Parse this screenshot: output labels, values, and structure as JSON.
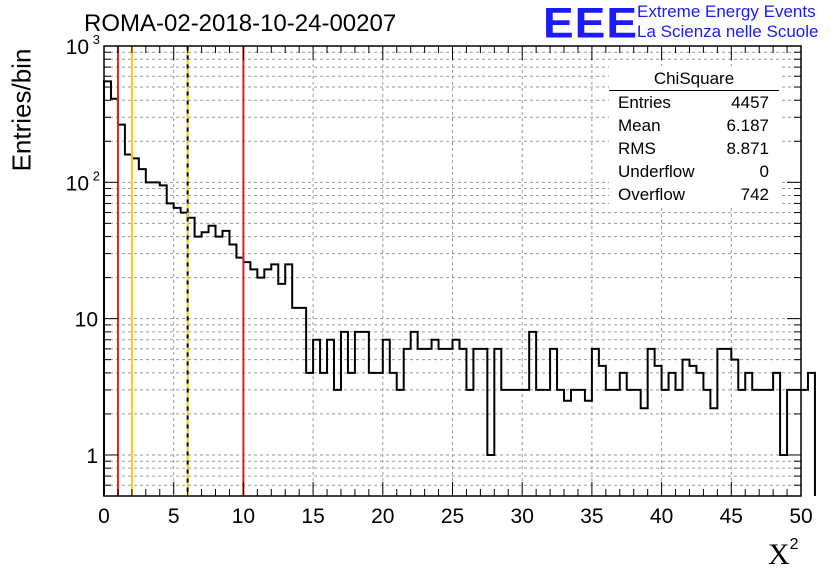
{
  "header": {
    "run_title": "ROMA-02-2018-10-24-00207",
    "logo_text": "EEE",
    "logo_line1": "Extreme Energy Events",
    "logo_line2": "La Scienza nelle Scuole",
    "logo_color": "#1a1aff"
  },
  "stats": {
    "title": "ChiSquare",
    "rows": [
      {
        "label": "Entries",
        "value": "4457"
      },
      {
        "label": "Mean",
        "value": "6.187"
      },
      {
        "label": "RMS",
        "value": "8.871"
      },
      {
        "label": "Underflow",
        "value": "0"
      },
      {
        "label": "Overflow",
        "value": "742"
      }
    ]
  },
  "chart_data": {
    "type": "histogram",
    "title": "ROMA-02-2018-10-24-00207",
    "xlabel": "X",
    "xlabel_superscript": "2",
    "ylabel": "Entries/bin",
    "xlim": [
      0,
      50
    ],
    "ylim": [
      0.5,
      1000
    ],
    "y_scale": "log",
    "grid": true,
    "bin_width": 0.5,
    "x_ticks": [
      "0",
      "5",
      "10",
      "15",
      "20",
      "25",
      "30",
      "35",
      "40",
      "45",
      "50"
    ],
    "y_ticks": [
      {
        "value": 1,
        "label": "1"
      },
      {
        "value": 10,
        "label": "10"
      },
      {
        "value": 100,
        "label": "10",
        "exponent": "2"
      },
      {
        "value": 1000,
        "label": "10",
        "exponent": "3"
      }
    ],
    "values": [
      550,
      410,
      265,
      160,
      150,
      125,
      100,
      100,
      95,
      70,
      65,
      60,
      55,
      40,
      43,
      48,
      40,
      44,
      35,
      28,
      26,
      23,
      20,
      23,
      25,
      18,
      25,
      12,
      12,
      4,
      7,
      4,
      7,
      3,
      8,
      4,
      8,
      8,
      4,
      4,
      7,
      4,
      3,
      6,
      8,
      6,
      6,
      7,
      6,
      6,
      7,
      6,
      3,
      6,
      6,
      1,
      6,
      3,
      3,
      3,
      3,
      8,
      3,
      3,
      6,
      3,
      2.5,
      3,
      3,
      2.5,
      6,
      4.5,
      3,
      3,
      4,
      3,
      3,
      2.2,
      6,
      4.5,
      3,
      4,
      3,
      5,
      4.5,
      4,
      3,
      2.2,
      6,
      6,
      5,
      3,
      4,
      3,
      3,
      3,
      4,
      1,
      3,
      3,
      3,
      4
    ],
    "vertical_markers": [
      {
        "x": 1,
        "color": "#dd2222",
        "style": "solid"
      },
      {
        "x": 2,
        "color": "#ffcc00",
        "style": "solid"
      },
      {
        "x": 6,
        "color": "#000000",
        "style": "dashed"
      },
      {
        "x": 6,
        "color": "#ffcc00",
        "style": "dashed"
      },
      {
        "x": 10,
        "color": "#dd2222",
        "style": "solid"
      }
    ]
  }
}
